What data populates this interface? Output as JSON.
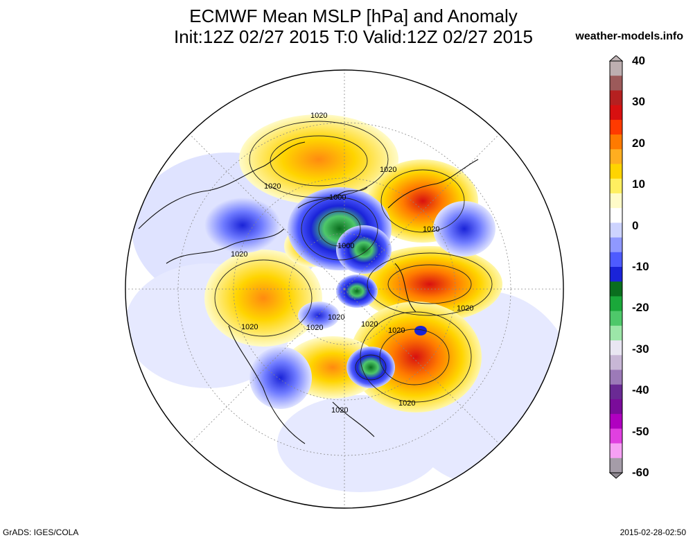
{
  "header": {
    "title_line1": "ECMWF Mean MSLP [hPa] and Anomaly",
    "title_line2": "Init:12Z 02/27 2015 T:0 Valid:12Z 02/27 2015",
    "brand": "weather-models.info"
  },
  "footer": {
    "left": "GrADS: IGES/COLA",
    "right": "2015-02-28-02:50"
  },
  "map": {
    "projection": "polar-stereographic-north",
    "isobar_labels": [
      "1020",
      "1020",
      "1020",
      "1020",
      "1000",
      "1000",
      "1020",
      "1020",
      "1020",
      "1020",
      "1020",
      "1020",
      "1020",
      "1020",
      "1020"
    ]
  },
  "colorbar": {
    "labels": [
      "40",
      "30",
      "20",
      "10",
      "0",
      "-10",
      "-20",
      "-30",
      "-40",
      "-50",
      "-60"
    ],
    "colors": [
      "#bdaeb0",
      "#9c5a5a",
      "#b52020",
      "#d81010",
      "#ff3a00",
      "#ff7a00",
      "#ffae20",
      "#ffd400",
      "#ffef60",
      "#fffbc8",
      "#ffffff",
      "#cdd3ff",
      "#8f98ff",
      "#4e5bff",
      "#1a23d8",
      "#0a6e1e",
      "#1aa83a",
      "#4ec86a",
      "#9ce6a8",
      "#e9e6f2",
      "#c8b7d6",
      "#9c7ab8",
      "#6a2a94",
      "#7a0c9a",
      "#b000c0",
      "#e040e0",
      "#f6a0f4",
      "#a59ca8"
    ]
  }
}
